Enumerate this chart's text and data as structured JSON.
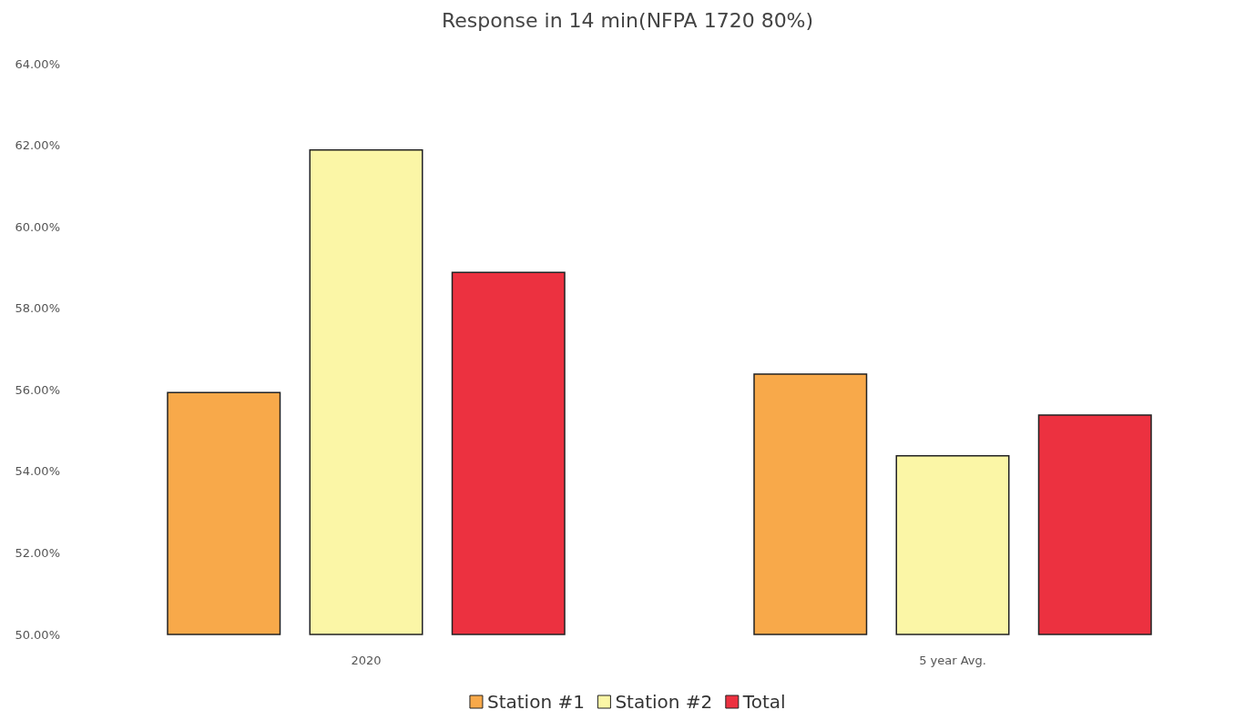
{
  "chart_data": {
    "type": "bar",
    "title": "Response in 14 min(NFPA 1720 80%)",
    "categories": [
      "2020",
      "5 year Avg."
    ],
    "series": [
      {
        "name": "Station #1",
        "color": "#f8a94a",
        "values": [
          55.95,
          56.4
        ]
      },
      {
        "name": "Station #2",
        "color": "#fbf6a6",
        "values": [
          61.9,
          54.4
        ]
      },
      {
        "name": "Total",
        "color": "#ec3140",
        "values": [
          58.9,
          55.4
        ]
      }
    ],
    "ylim": [
      50,
      64
    ],
    "yticks": [
      {
        "value": 50,
        "label": "50.00%"
      },
      {
        "value": 52,
        "label": "52.00%"
      },
      {
        "value": 54,
        "label": "54.00%"
      },
      {
        "value": 56,
        "label": "56.00%"
      },
      {
        "value": 58,
        "label": "58.00%"
      },
      {
        "value": 60,
        "label": "60.00%"
      },
      {
        "value": 62,
        "label": "62.00%"
      },
      {
        "value": 64,
        "label": "64.00%"
      }
    ],
    "grid": false,
    "legend": "bottom"
  }
}
